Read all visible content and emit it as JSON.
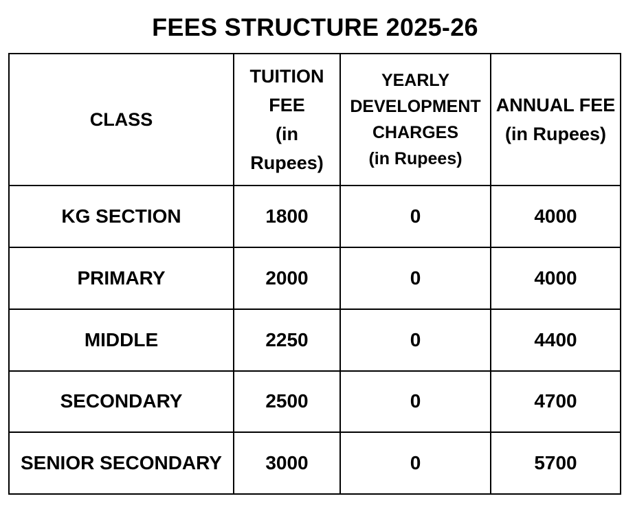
{
  "title": "FEES STRUCTURE 2025-26",
  "headers": {
    "class": "CLASS",
    "tuition": [
      "TUITION",
      "FEE",
      "(in",
      "Rupees)"
    ],
    "development": [
      "YEARLY",
      "DEVELOPMENT",
      "CHARGES",
      "(in Rupees)"
    ],
    "annual": [
      "ANNUAL FEE",
      "(in Rupees)"
    ]
  },
  "rows": [
    {
      "class": "KG SECTION",
      "tuition": "1800",
      "development": "0",
      "annual": "4000"
    },
    {
      "class": "PRIMARY",
      "tuition": "2000",
      "development": "0",
      "annual": "4000"
    },
    {
      "class": "MIDDLE",
      "tuition": "2250",
      "development": "0",
      "annual": "4400"
    },
    {
      "class": "SECONDARY",
      "tuition": "2500",
      "development": "0",
      "annual": "4700"
    },
    {
      "class": "SENIOR SECONDARY",
      "tuition": "3000",
      "development": "0",
      "annual": "5700"
    }
  ]
}
